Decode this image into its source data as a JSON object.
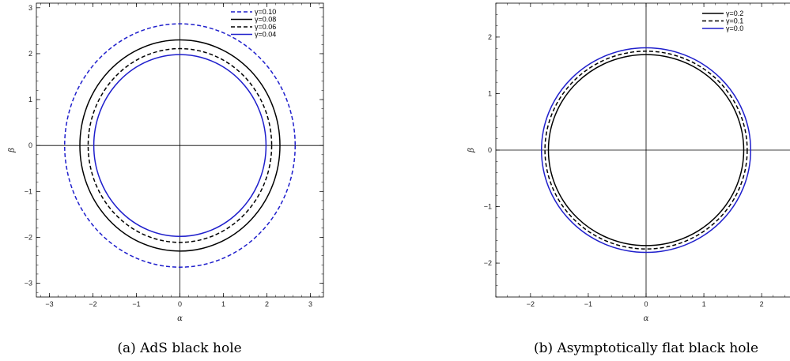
{
  "chart_data": [
    {
      "type": "line",
      "caption": "(a) AdS black hole",
      "xlabel": "α",
      "ylabel": "β",
      "xlim": [
        -3.3,
        3.3
      ],
      "ylim": [
        -3.3,
        3.1
      ],
      "xticks": [
        -3,
        -2,
        -1,
        0,
        1,
        2,
        3
      ],
      "yticks": [
        -3,
        -2,
        -1,
        0,
        1,
        2,
        3
      ],
      "xtick_labels": [
        "−3",
        "−2",
        "−1",
        "0",
        "1",
        "2",
        "3"
      ],
      "ytick_labels": [
        "−3",
        "−2",
        "−1",
        "0",
        "1",
        "2",
        "3"
      ],
      "legend_position": "top-right",
      "series": [
        {
          "name": "γ=0.10",
          "radius": 2.65,
          "color": "#1f1fcc",
          "style": "dashed"
        },
        {
          "name": "γ=0.08",
          "radius": 2.3,
          "color": "#000000",
          "style": "solid"
        },
        {
          "name": "γ=0.06",
          "radius": 2.11,
          "color": "#000000",
          "style": "dashed"
        },
        {
          "name": "γ=0.04",
          "radius": 1.98,
          "color": "#1f1fcc",
          "style": "solid"
        }
      ]
    },
    {
      "type": "line",
      "caption": "(b) Asymptotically flat black hole",
      "xlabel": "α",
      "ylabel": "β",
      "xlim": [
        -2.6,
        2.6
      ],
      "ylim": [
        -2.6,
        2.6
      ],
      "xticks": [
        -2,
        -1,
        0,
        1,
        2
      ],
      "yticks": [
        -2,
        -1,
        0,
        1,
        2
      ],
      "xtick_labels": [
        "−2",
        "−1",
        "0",
        "1",
        "2"
      ],
      "ytick_labels": [
        "−2",
        "−1",
        "0",
        "1",
        "2"
      ],
      "legend_position": "top-right",
      "series": [
        {
          "name": "γ=0.2",
          "radius": 1.69,
          "color": "#000000",
          "style": "solid"
        },
        {
          "name": "γ=0.1",
          "radius": 1.75,
          "color": "#000000",
          "style": "dashed"
        },
        {
          "name": "γ=0.0",
          "radius": 1.81,
          "color": "#1f1fcc",
          "style": "solid"
        }
      ]
    }
  ]
}
